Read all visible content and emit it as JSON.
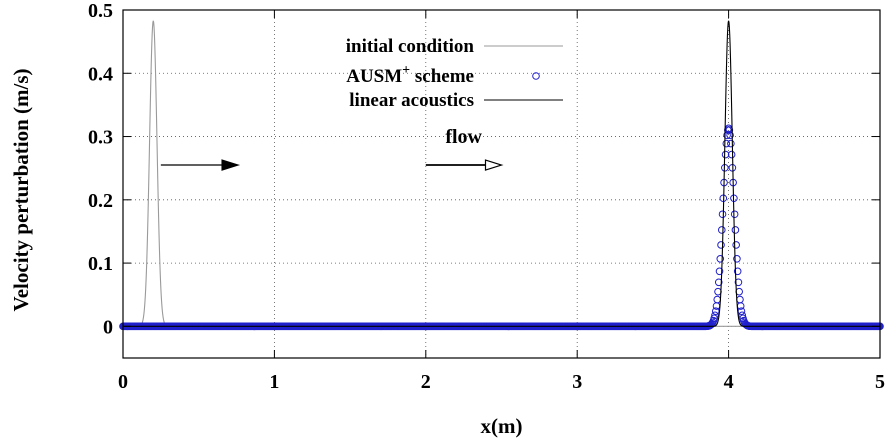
{
  "chart_data": {
    "type": "line",
    "xlabel": "x(m)",
    "ylabel": "Velocity perturbation (m/s)",
    "xlim": [
      0,
      5
    ],
    "ylim": [
      -0.05,
      0.5
    ],
    "x_ticks": [
      0,
      1,
      2,
      3,
      4,
      5
    ],
    "y_ticks": [
      0,
      0.1,
      0.2,
      0.3,
      0.4,
      0.5
    ],
    "x_tick_labels": [
      "0",
      "1",
      "2",
      "3",
      "4",
      "5"
    ],
    "y_tick_labels": [
      "0",
      "0.1",
      "0.2",
      "0.3",
      "0.4",
      "0.5"
    ],
    "grid": "dotted",
    "legend_position": "top-right",
    "series": [
      {
        "name": "initial condition",
        "style": "thin line",
        "color": "#9a9a9a",
        "shape": "gaussian",
        "center": 0.2,
        "amplitude": 0.483,
        "sigma": 0.0245,
        "x_range": [
          0,
          5
        ]
      },
      {
        "name": "AUSM",
        "name_superscript": "+",
        "name_suffix": " scheme",
        "style": "circle markers",
        "color": "#2020cc",
        "shape": "gaussian",
        "center": 4.0,
        "amplitude": 0.313,
        "sigma": 0.0375,
        "x_range": [
          0,
          5
        ],
        "marker_spacing": 0.005
      },
      {
        "name": "linear acoustics",
        "style": "thin line",
        "color": "#000000",
        "shape": "gaussian",
        "center": 4.0,
        "amplitude": 0.483,
        "sigma": 0.0245,
        "x_range": [
          0,
          5
        ]
      }
    ],
    "annotations": [
      {
        "type": "arrow",
        "style": "filled-head",
        "from": [
          0.25,
          0.255
        ],
        "to": [
          0.76,
          0.255
        ]
      },
      {
        "type": "arrow",
        "style": "open-head",
        "from": [
          2.0,
          0.255
        ],
        "to": [
          2.5,
          0.255
        ]
      },
      {
        "type": "text",
        "text": "flow",
        "x": 2.25,
        "y": 0.29
      }
    ]
  }
}
